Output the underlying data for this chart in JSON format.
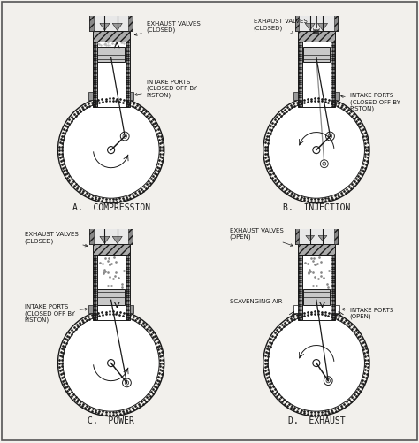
{
  "bg_color": "#f2f0ec",
  "panel_bg": "#ffffff",
  "line_color": "#1a1a1a",
  "title_A": "A.  COMPRESSION",
  "title_B": "B.  INJECTION",
  "title_C": "C.  POWER",
  "title_D": "D.  EXHAUST",
  "font_size_label": 5.0,
  "font_size_title": 7.0,
  "panels": [
    "A",
    "B",
    "C",
    "D"
  ]
}
